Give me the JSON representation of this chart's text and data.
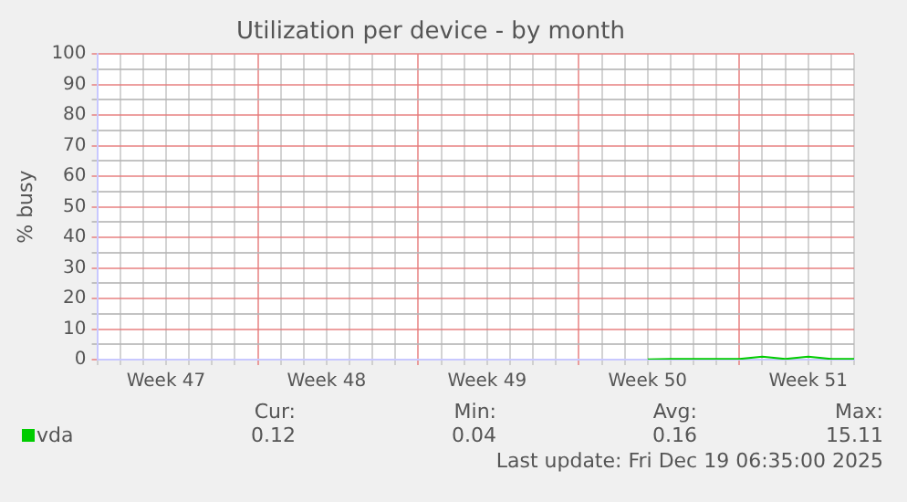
{
  "chart_data": {
    "type": "line",
    "title": "Utilization per device - by month",
    "ylabel": "% busy",
    "categories": [
      null,
      null,
      null,
      "Week 47",
      null,
      null,
      null,
      null,
      null,
      null,
      "Week 48",
      null,
      null,
      null,
      null,
      null,
      null,
      "Week 49",
      null,
      null,
      null,
      null,
      null,
      null,
      "Week 50",
      null,
      null,
      null,
      null,
      null,
      null,
      "Week 51",
      null,
      null
    ],
    "series": [
      {
        "name": "vda",
        "color": "#00cc00",
        "values": [
          null,
          null,
          null,
          null,
          null,
          null,
          null,
          null,
          null,
          null,
          null,
          null,
          null,
          null,
          null,
          null,
          null,
          null,
          null,
          null,
          null,
          null,
          null,
          null,
          0.1,
          0.2,
          0.2,
          0.2,
          0.2,
          1,
          0.2,
          1,
          0.2,
          0.2
        ]
      }
    ],
    "ylim": [
      0,
      100
    ],
    "yticks": [
      0,
      {
        "value": 5,
        "label": null
      },
      10,
      {
        "value": 15,
        "label": null
      },
      20,
      {
        "value": 25,
        "label": null
      },
      30,
      {
        "value": 35,
        "label": null
      },
      40,
      {
        "value": 45,
        "label": null
      },
      50,
      {
        "value": 55,
        "label": null
      },
      60,
      {
        "value": 65,
        "label": null
      },
      70,
      {
        "value": 75,
        "label": null
      },
      80,
      {
        "value": 85,
        "label": null
      },
      90,
      {
        "value": 95,
        "label": null
      },
      100
    ],
    "grid": true,
    "legend": "bottom left",
    "marker": "none",
    "line_style": "solid",
    "annotations": [
      "Cur:",
      "Min:",
      "Avg:",
      "Max:",
      "0.12",
      "0.04",
      "0.16",
      "15.11",
      "Last update: Fri Dec 19 06:35:00 2025"
    ]
  }
}
